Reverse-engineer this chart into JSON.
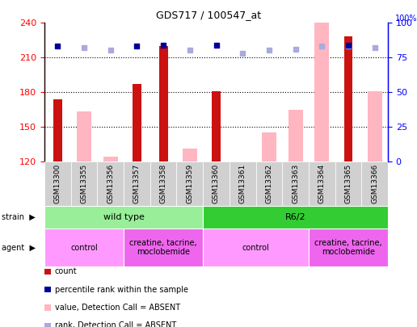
{
  "title": "GDS717 / 100547_at",
  "samples": [
    "GSM13300",
    "GSM13355",
    "GSM13356",
    "GSM13357",
    "GSM13358",
    "GSM13359",
    "GSM13360",
    "GSM13361",
    "GSM13362",
    "GSM13363",
    "GSM13364",
    "GSM13365",
    "GSM13366"
  ],
  "count_values": [
    174,
    null,
    null,
    187,
    220,
    null,
    181,
    null,
    null,
    null,
    null,
    228,
    null
  ],
  "absent_values": [
    null,
    163,
    124,
    null,
    null,
    131,
    null,
    120,
    145,
    165,
    240,
    null,
    181
  ],
  "percentile_rank": [
    83,
    null,
    null,
    83,
    84,
    null,
    84,
    null,
    null,
    null,
    null,
    84,
    null
  ],
  "absent_rank": [
    null,
    82,
    80,
    null,
    null,
    80,
    null,
    78,
    80,
    81,
    83,
    83,
    82
  ],
  "ylim": [
    120,
    240
  ],
  "y2lim": [
    0,
    100
  ],
  "yticks": [
    120,
    150,
    180,
    210,
    240
  ],
  "y2ticks": [
    0,
    25,
    50,
    75,
    100
  ],
  "bar_color_count": "#CC1111",
  "bar_color_absent": "#FFB6C1",
  "dot_color_rank": "#000099",
  "dot_color_absent_rank": "#AAAADD",
  "strain_groups": [
    {
      "label": "wild type",
      "start": 0,
      "end": 5,
      "color": "#99EE99"
    },
    {
      "label": "R6/2",
      "start": 6,
      "end": 12,
      "color": "#33CC33"
    }
  ],
  "agent_groups": [
    {
      "label": "control",
      "start": 0,
      "end": 2,
      "color": "#FF99FF"
    },
    {
      "label": "creatine, tacrine,\nmoclobemide",
      "start": 3,
      "end": 5,
      "color": "#EE66EE"
    },
    {
      "label": "control",
      "start": 6,
      "end": 9,
      "color": "#FF99FF"
    },
    {
      "label": "creatine, tacrine,\nmoclobemide",
      "start": 10,
      "end": 12,
      "color": "#EE66EE"
    }
  ],
  "legend_items": [
    {
      "color": "#CC1111",
      "label": "count"
    },
    {
      "color": "#000099",
      "label": "percentile rank within the sample"
    },
    {
      "color": "#FFB6C1",
      "label": "value, Detection Call = ABSENT"
    },
    {
      "color": "#AAAADD",
      "label": "rank, Detection Call = ABSENT"
    }
  ]
}
